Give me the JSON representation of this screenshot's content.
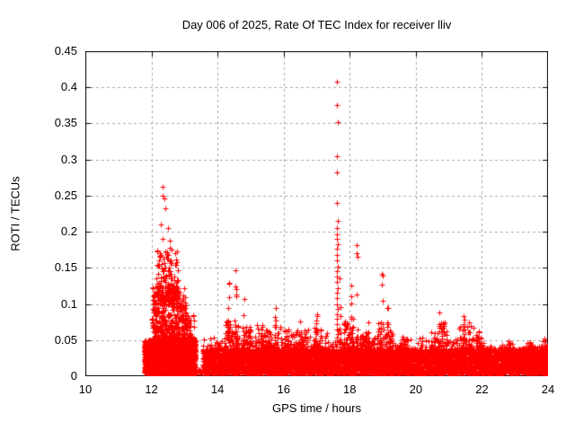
{
  "chart_data": {
    "type": "scatter",
    "title": "Day 006 of 2025, Rate Of TEC Index for receiver lliv",
    "xlabel": "GPS time / hours",
    "ylabel": "ROTI / TECUs",
    "xlim": [
      10,
      24
    ],
    "ylim": [
      0,
      0.45
    ],
    "xticks": {
      "values": [
        10,
        12,
        14,
        16,
        18,
        20,
        22,
        24
      ],
      "labels": [
        "10",
        "12",
        "14",
        "16",
        "18",
        "20",
        "22",
        "24"
      ]
    },
    "yticks": {
      "values": [
        0,
        0.05,
        0.1,
        0.15,
        0.2,
        0.25,
        0.3,
        0.35,
        0.4,
        0.45
      ],
      "labels": [
        "0",
        "0.05",
        "0.1",
        "0.15",
        "0.2",
        "0.25",
        "0.3",
        "0.35",
        "0.4",
        "0.45"
      ]
    },
    "grid": true,
    "grid_color": "#a8a8a8",
    "border_color": "#000000",
    "marker": {
      "symbol": "plus",
      "color": "#ff0000",
      "size": 7
    },
    "seed": 42,
    "data_time_range": [
      11.78,
      24.0
    ],
    "baseline_segments": [
      {
        "t0": 11.78,
        "t1": 13.33,
        "ymin": 0.003,
        "ymax": 0.05,
        "n": 2400,
        "decay": 1.15
      },
      {
        "t0": 12.02,
        "t1": 13.05,
        "ymin": 0.045,
        "ymax": 0.125,
        "n": 480,
        "decay": 2.0
      },
      {
        "t0": 12.15,
        "t1": 12.8,
        "ymin": 0.1,
        "ymax": 0.175,
        "n": 150,
        "decay": 1.8
      },
      {
        "t0": 12.9,
        "t1": 13.3,
        "ymin": 0.04,
        "ymax": 0.085,
        "n": 110,
        "decay": 1.8
      },
      {
        "t0": 13.35,
        "t1": 13.55,
        "ymin": 0.002,
        "ymax": 0.01,
        "n": 12,
        "decay": 1.0
      },
      {
        "t0": 13.55,
        "t1": 24.05,
        "ymin": 0.003,
        "ymax": 0.038,
        "n": 6000,
        "decay": 1.25
      },
      {
        "t0": 13.55,
        "t1": 22.0,
        "ymin": 0.03,
        "ymax": 0.055,
        "n": 700,
        "decay": 2.2
      },
      {
        "t0": 22.0,
        "t1": 24.05,
        "ymin": 0.025,
        "ymax": 0.042,
        "n": 170,
        "decay": 2.2
      }
    ],
    "bumps": [
      {
        "t0": 14.2,
        "t1": 14.65,
        "ybase": 0.02,
        "ymax": 0.078,
        "n": 90
      },
      {
        "t0": 14.7,
        "t1": 15.0,
        "ybase": 0.02,
        "ymax": 0.07,
        "n": 60
      },
      {
        "t0": 15.2,
        "t1": 15.95,
        "ybase": 0.02,
        "ymax": 0.072,
        "n": 110
      },
      {
        "t0": 16.0,
        "t1": 16.75,
        "ybase": 0.02,
        "ymax": 0.065,
        "n": 100
      },
      {
        "t0": 16.9,
        "t1": 17.15,
        "ybase": 0.02,
        "ymax": 0.068,
        "n": 50
      },
      {
        "t0": 17.8,
        "t1": 18.1,
        "ybase": 0.02,
        "ymax": 0.08,
        "n": 70
      },
      {
        "t0": 18.3,
        "t1": 18.7,
        "ybase": 0.02,
        "ymax": 0.062,
        "n": 60
      },
      {
        "t0": 18.8,
        "t1": 19.3,
        "ybase": 0.02,
        "ymax": 0.075,
        "n": 80
      },
      {
        "t0": 19.5,
        "t1": 19.75,
        "ybase": 0.02,
        "ymax": 0.052,
        "n": 40
      },
      {
        "t0": 20.45,
        "t1": 20.95,
        "ybase": 0.02,
        "ymax": 0.075,
        "n": 80
      },
      {
        "t0": 21.3,
        "t1": 21.75,
        "ybase": 0.02,
        "ymax": 0.072,
        "n": 70
      },
      {
        "t0": 21.8,
        "t1": 22.05,
        "ybase": 0.02,
        "ymax": 0.058,
        "n": 40
      },
      {
        "t0": 22.6,
        "t1": 22.95,
        "ybase": 0.02,
        "ymax": 0.046,
        "n": 40
      },
      {
        "t0": 23.25,
        "t1": 23.6,
        "ybase": 0.02,
        "ymax": 0.046,
        "n": 40
      },
      {
        "t0": 23.75,
        "t1": 24.0,
        "ybase": 0.02,
        "ymax": 0.05,
        "n": 35
      }
    ],
    "spikes": [
      {
        "t": 12.28,
        "peak": 0.21,
        "n": 6
      },
      {
        "t": 12.33,
        "peak": 0.262,
        "n": 9
      },
      {
        "t": 12.38,
        "peak": 0.246,
        "n": 7
      },
      {
        "t": 12.43,
        "peak": 0.232,
        "n": 6
      },
      {
        "t": 12.5,
        "peak": 0.205,
        "n": 5
      },
      {
        "t": 12.56,
        "peak": 0.188,
        "n": 5
      },
      {
        "t": 12.62,
        "peak": 0.175,
        "n": 5
      },
      {
        "t": 14.35,
        "peak": 0.129,
        "n": 8
      },
      {
        "t": 14.55,
        "peak": 0.147,
        "n": 9
      },
      {
        "t": 14.8,
        "peak": 0.107,
        "n": 7
      },
      {
        "t": 15.35,
        "peak": 0.068,
        "n": 4
      },
      {
        "t": 15.75,
        "peak": 0.094,
        "n": 6
      },
      {
        "t": 16.1,
        "peak": 0.062,
        "n": 4
      },
      {
        "t": 16.5,
        "peak": 0.076,
        "n": 5
      },
      {
        "t": 17.0,
        "peak": 0.086,
        "n": 5
      },
      {
        "t": 17.3,
        "peak": 0.06,
        "n": 3
      },
      {
        "t": 17.7,
        "peak": 0.135,
        "n": 8
      },
      {
        "t": 18.05,
        "peak": 0.125,
        "n": 7
      },
      {
        "t": 18.22,
        "peak": 0.182,
        "n": 11
      },
      {
        "t": 18.55,
        "peak": 0.075,
        "n": 4
      },
      {
        "t": 18.98,
        "peak": 0.142,
        "n": 10
      },
      {
        "t": 19.15,
        "peak": 0.095,
        "n": 5
      },
      {
        "t": 19.6,
        "peak": 0.055,
        "n": 3
      },
      {
        "t": 20.7,
        "peak": 0.088,
        "n": 7
      },
      {
        "t": 20.85,
        "peak": 0.07,
        "n": 4
      },
      {
        "t": 21.45,
        "peak": 0.083,
        "n": 7
      },
      {
        "t": 21.6,
        "peak": 0.075,
        "n": 5
      },
      {
        "t": 21.9,
        "peak": 0.062,
        "n": 4
      },
      {
        "t": 22.8,
        "peak": 0.048,
        "n": 3
      },
      {
        "t": 23.45,
        "peak": 0.047,
        "n": 3
      },
      {
        "t": 23.9,
        "peak": 0.052,
        "n": 3
      }
    ],
    "peak_points": [
      [
        17.62,
        0.408
      ],
      [
        17.61,
        0.375
      ],
      [
        17.63,
        0.352
      ],
      [
        17.62,
        0.305
      ],
      [
        17.61,
        0.282
      ],
      [
        17.62,
        0.24
      ],
      [
        17.63,
        0.215
      ],
      [
        17.6,
        0.205
      ],
      [
        17.62,
        0.197
      ],
      [
        17.61,
        0.19
      ],
      [
        17.63,
        0.183
      ],
      [
        17.62,
        0.176
      ],
      [
        17.6,
        0.168
      ],
      [
        17.62,
        0.16
      ],
      [
        17.63,
        0.152
      ],
      [
        17.61,
        0.145
      ],
      [
        17.62,
        0.138
      ],
      [
        17.6,
        0.13
      ],
      [
        17.63,
        0.122
      ],
      [
        17.62,
        0.115
      ],
      [
        17.61,
        0.108
      ],
      [
        17.62,
        0.1
      ],
      [
        17.63,
        0.093
      ],
      [
        17.61,
        0.086
      ],
      [
        17.62,
        0.079
      ],
      [
        17.6,
        0.072
      ],
      [
        17.62,
        0.065
      ],
      [
        17.63,
        0.058
      ],
      [
        17.61,
        0.05
      ]
    ]
  }
}
